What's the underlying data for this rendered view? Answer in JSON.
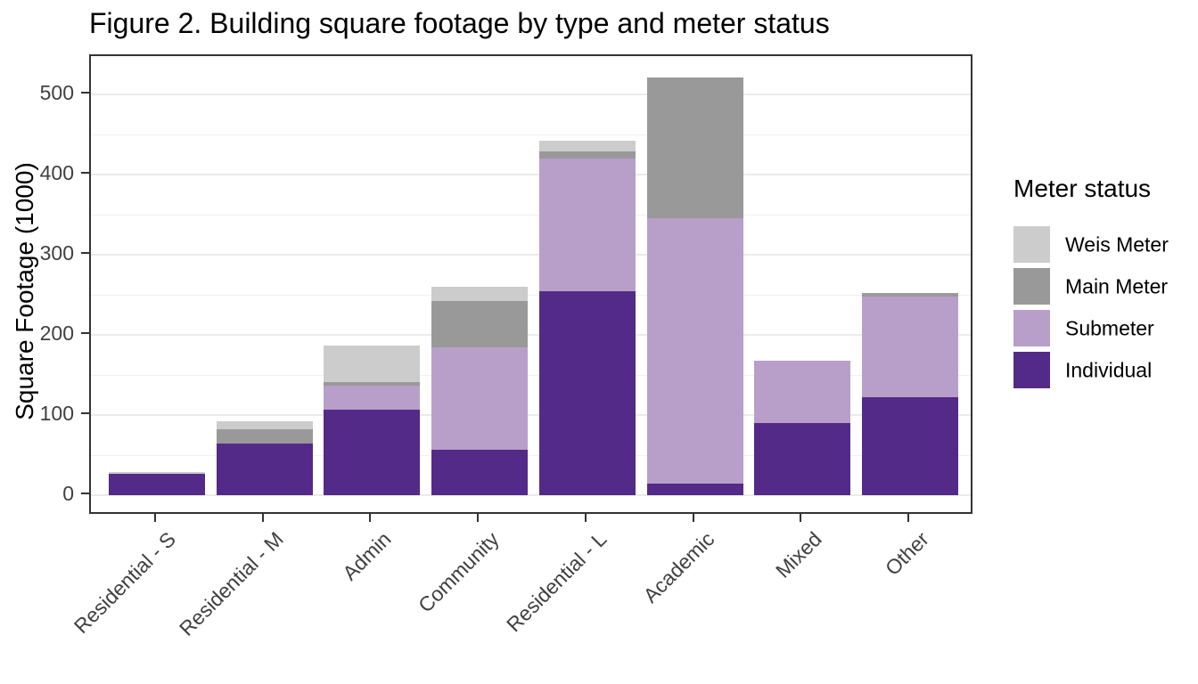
{
  "chart_data": {
    "type": "bar",
    "stacked": true,
    "title": "Figure 2. Building square footage by type and meter status",
    "ylabel": "Square Footage (1000)",
    "xlabel": "",
    "categories": [
      "Residential - S",
      "Residential - M",
      "Admin",
      "Community",
      "Residential - L",
      "Academic",
      "Mixed",
      "Other"
    ],
    "series": [
      {
        "name": "Individual",
        "color": "#542a88",
        "values": [
          27,
          64,
          107,
          57,
          255,
          14,
          90,
          122
        ]
      },
      {
        "name": "Submeter",
        "color": "#b89fc9",
        "values": [
          0,
          0,
          30,
          127,
          165,
          332,
          78,
          126
        ]
      },
      {
        "name": "Main Meter",
        "color": "#999999",
        "values": [
          0,
          18,
          4,
          58,
          9,
          175,
          0,
          4
        ]
      },
      {
        "name": "Weis Meter",
        "color": "#cccccc",
        "values": [
          2,
          10,
          46,
          18,
          13,
          0,
          0,
          0
        ]
      }
    ],
    "totals": [
      29,
      92,
      187,
      260,
      442,
      521,
      168,
      252
    ],
    "ylim": [
      0,
      548
    ],
    "yticks": [
      0,
      100,
      200,
      300,
      400,
      500
    ],
    "minor_yticks": [
      50,
      150,
      250,
      350,
      450
    ],
    "grid": true,
    "panel_border": "#333333",
    "gridline_color": "#ebebeb",
    "legend_title": "Meter status",
    "legend_position": "right",
    "legend_order": [
      "Weis Meter",
      "Main Meter",
      "Submeter",
      "Individual"
    ]
  }
}
